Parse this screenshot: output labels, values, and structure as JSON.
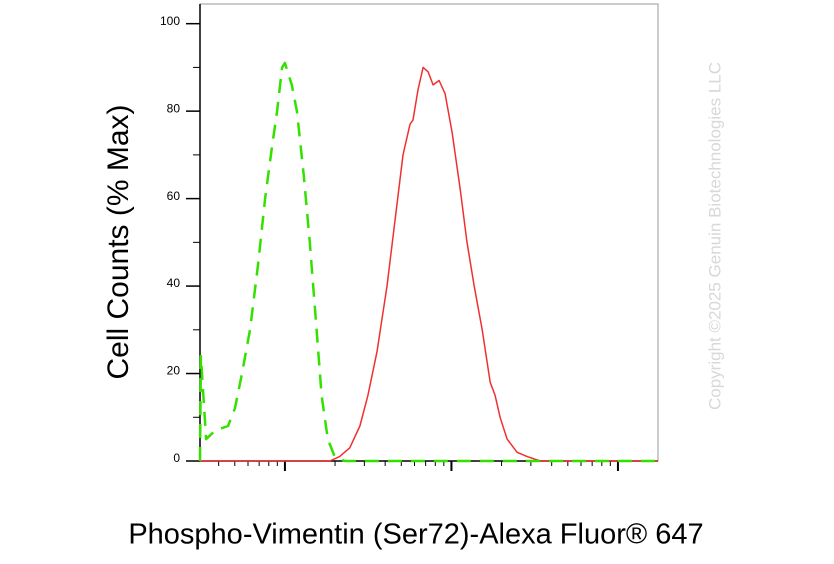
{
  "chart_data": {
    "type": "line",
    "x_label": "Phospho-Vimentin (Ser72)-Alexa Fluor® 647",
    "y_label": "Cell Counts (% Max)",
    "watermark": "Copyright ©2025 Genuin Biotechnologies LLC",
    "xscale": "log",
    "xlim": [
      30.9,
      17400
    ],
    "xticks": [
      100,
      1000,
      10000
    ],
    "xminor_ticks": [
      40,
      50,
      60,
      70,
      80,
      90,
      200,
      300,
      400,
      500,
      600,
      700,
      800,
      900,
      2000,
      3000,
      4000,
      5000,
      6000,
      7000,
      8000,
      9000
    ],
    "ylim": [
      0,
      104.5
    ],
    "yticks": [
      0,
      20,
      40,
      60,
      80,
      100
    ],
    "yminor_ticks": [
      10,
      30,
      50,
      70,
      90
    ],
    "series": [
      {
        "color": "#33e000",
        "dashed": true,
        "x": [
          30.9,
          31.3,
          33.6,
          38.2,
          45.5,
          50.1,
          55.2,
          61.7,
          69.0,
          76.0,
          83.8,
          89.8,
          96.2,
          100,
          110,
          118,
          130,
          141,
          155,
          166,
          181,
          199,
          229,
          17400
        ],
        "values": [
          0,
          24,
          5,
          7,
          8,
          12,
          20,
          30,
          45,
          60,
          72,
          80,
          90,
          91,
          86,
          80,
          65,
          50,
          30,
          15,
          5,
          1,
          0,
          0
        ]
      },
      {
        "color": "#f03030",
        "dashed": false,
        "x": [
          30.9,
          186,
          213,
          245,
          282,
          315,
          357,
          410,
          458,
          512,
          564,
          588,
          631,
          676,
          724,
          776,
          843,
          916,
          1010,
          1130,
          1240,
          1370,
          1530,
          1710,
          1830,
          1960,
          2160,
          2480,
          2850,
          3420,
          17400
        ],
        "values": [
          0,
          0,
          1,
          3,
          8,
          15,
          25,
          40,
          55,
          70,
          77,
          78,
          85,
          90,
          89,
          86,
          87,
          84,
          75,
          62,
          50,
          40,
          30,
          18,
          15,
          10,
          5,
          2,
          1,
          0,
          0
        ]
      }
    ]
  }
}
